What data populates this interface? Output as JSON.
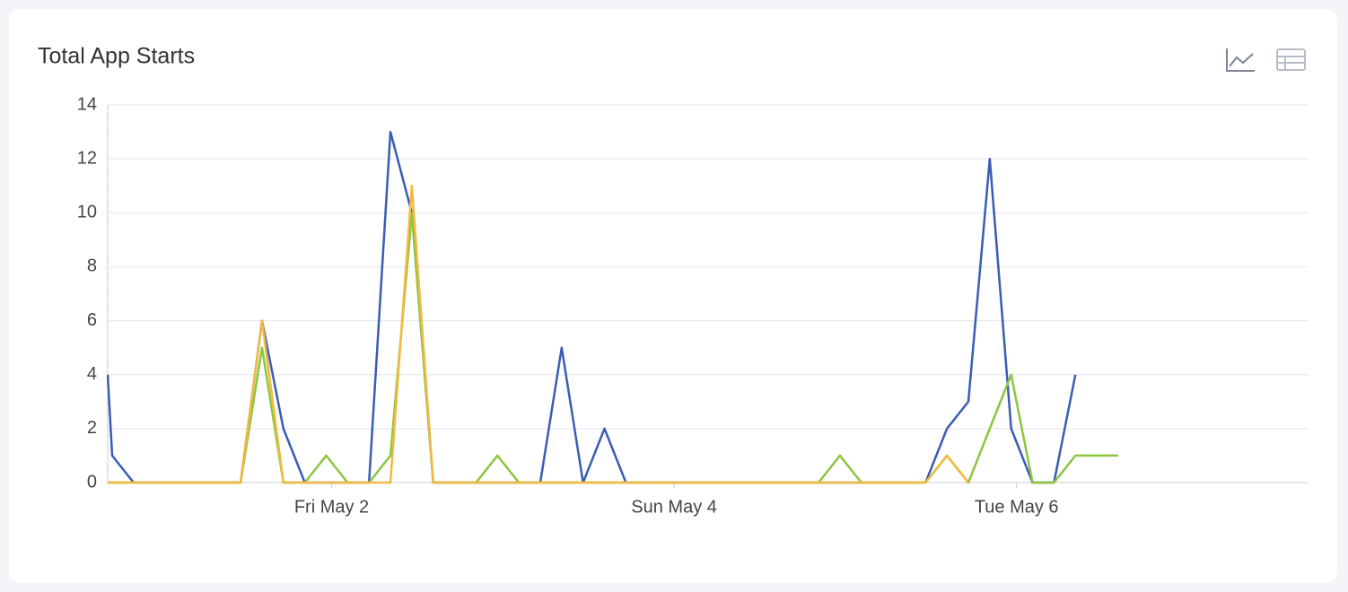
{
  "chart_data": {
    "type": "line",
    "title": "Total App Starts",
    "categories": [
      null,
      null,
      null,
      null,
      null,
      null,
      null,
      null,
      null,
      null,
      null,
      "Fri May 2",
      null,
      null,
      null,
      null,
      null,
      null,
      null,
      null,
      null,
      null,
      null,
      null,
      null,
      null,
      null,
      "Sun May 4",
      null,
      null,
      null,
      null,
      null,
      null,
      null,
      null,
      null,
      null,
      null,
      null,
      null,
      null,
      null,
      "Tue May 6",
      null,
      null,
      null,
      null,
      null
    ],
    "series": [
      {
        "color": "#3a5cb4",
        "values": [
          4,
          1,
          0,
          0,
          0,
          0,
          0,
          0,
          6,
          2,
          0,
          0,
          0,
          0,
          13,
          10,
          0,
          0,
          0,
          0,
          0,
          0,
          5,
          0,
          2,
          0,
          0,
          0,
          0,
          0,
          0,
          0,
          0,
          0,
          0,
          0,
          0,
          0,
          0,
          0,
          2,
          3,
          12,
          2,
          0,
          0,
          4,
          null,
          null
        ]
      },
      {
        "color": "#8cc63e",
        "values": [
          0,
          0,
          0,
          0,
          0,
          0,
          0,
          0,
          5,
          0,
          0,
          1,
          0,
          0,
          1,
          10,
          0,
          0,
          0,
          1,
          0,
          0,
          0,
          0,
          0,
          0,
          0,
          0,
          0,
          0,
          0,
          0,
          0,
          0,
          0,
          1,
          0,
          0,
          0,
          0,
          1,
          0,
          2,
          4,
          0,
          0,
          1,
          1,
          1
        ]
      },
      {
        "color": "#f3b940",
        "values": [
          0,
          0,
          0,
          0,
          0,
          0,
          0,
          0,
          6,
          0,
          0,
          0,
          0,
          0,
          0,
          11,
          0,
          0,
          0,
          0,
          0,
          0,
          0,
          0,
          0,
          0,
          0,
          0,
          0,
          0,
          0,
          0,
          0,
          0,
          0,
          0,
          0,
          0,
          0,
          0,
          1,
          0,
          null,
          null,
          null,
          null,
          null,
          null,
          null
        ]
      }
    ],
    "ylim": [
      0,
      14
    ],
    "yticks": [
      0,
      2,
      4,
      6,
      8,
      10,
      12,
      14
    ],
    "grid": true
  }
}
